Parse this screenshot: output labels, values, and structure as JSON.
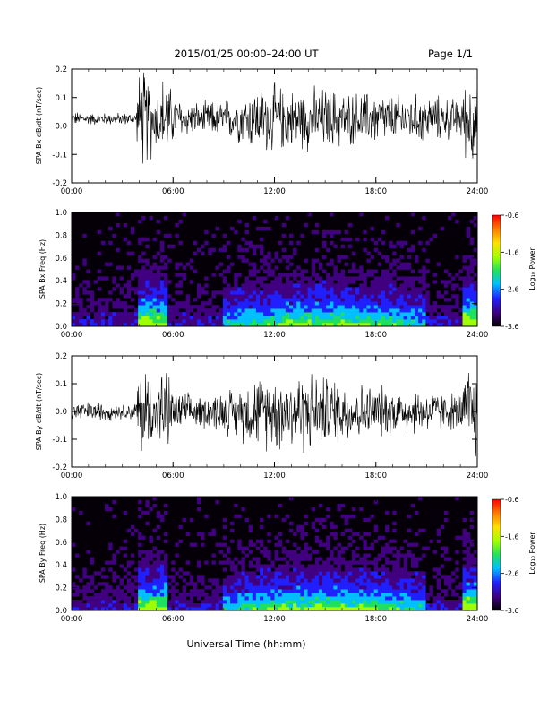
{
  "header": {
    "title": "2015/01/25  00:00–24:00 UT",
    "page": "Page 1/1"
  },
  "footer": {
    "xlabel": "Universal Time (hh:mm)"
  },
  "colors": {
    "background": "#ffffff",
    "trace": "#000000",
    "spectrogram_background": "#050008",
    "colormap": [
      "#050008",
      "#400080",
      "#2020ff",
      "#00c0ff",
      "#20e060",
      "#a0ff00",
      "#ffe000",
      "#ff8000",
      "#ff0000"
    ]
  },
  "chart_data": [
    {
      "type": "line",
      "ylabel": "SPA Bx dB/dt (nT/sec)",
      "xlim": [
        0,
        24
      ],
      "ylim": [
        -0.2,
        0.2
      ],
      "x_ticks": [
        "00:00",
        "06:00",
        "12:00",
        "18:00",
        "24:00"
      ],
      "y_ticks": [
        "0.2",
        "0.1",
        "0.0",
        "-0.1",
        "-0.2"
      ],
      "y_tick_values": [
        0.2,
        0.1,
        0.0,
        -0.1,
        -0.2
      ],
      "series": [
        {
          "x": [
            0,
            1,
            2,
            3,
            3.8,
            4.0,
            4.5,
            5.0,
            5.5,
            6,
            7,
            8,
            9,
            10,
            11,
            12,
            13,
            14,
            15,
            16,
            17,
            18,
            19,
            20,
            21,
            22,
            23,
            23.5,
            24
          ],
          "amplitude": [
            0.03,
            0.025,
            0.025,
            0.025,
            0.025,
            0.2,
            0.2,
            0.12,
            0.2,
            0.1,
            0.07,
            0.07,
            0.08,
            0.1,
            0.14,
            0.14,
            0.12,
            0.13,
            0.13,
            0.12,
            0.11,
            0.11,
            0.1,
            0.1,
            0.1,
            0.09,
            0.08,
            0.2,
            0.2
          ]
        }
      ]
    },
    {
      "type": "heatmap",
      "ylabel": "SPA Bx Freq (Hz)",
      "xlim": [
        0,
        24
      ],
      "ylim": [
        0,
        1.0
      ],
      "x_ticks": [
        "00:00",
        "06:00",
        "12:00",
        "18:00",
        "24:00"
      ],
      "y_ticks": [
        "1.0",
        "0.8",
        "0.6",
        "0.4",
        "0.2",
        "0.0"
      ],
      "y_tick_values": [
        1.0,
        0.8,
        0.6,
        0.4,
        0.2,
        0.0
      ],
      "colorbar": {
        "label": "Log₁₀ Power",
        "ticks": [
          "-0.6",
          "-1.6",
          "-2.6",
          "-3.6"
        ],
        "tick_values": [
          -0.6,
          -1.6,
          -2.6,
          -3.6
        ],
        "range": [
          -3.6,
          -0.6
        ]
      }
    },
    {
      "type": "line",
      "ylabel": "SPA By dB/dt (nT/sec)",
      "xlim": [
        0,
        24
      ],
      "ylim": [
        -0.2,
        0.2
      ],
      "x_ticks": [
        "00:00",
        "06:00",
        "12:00",
        "18:00",
        "24:00"
      ],
      "y_ticks": [
        "0.2",
        "0.1",
        "0.0",
        "-0.1",
        "-0.2"
      ],
      "y_tick_values": [
        0.2,
        0.1,
        0.0,
        -0.1,
        -0.2
      ],
      "series": [
        {
          "x": [
            0,
            1,
            2,
            3,
            3.8,
            4.0,
            4.5,
            5.0,
            5.5,
            6,
            7,
            8,
            9,
            10,
            11,
            12,
            13,
            14,
            15,
            16,
            17,
            18,
            19,
            20,
            21,
            22,
            23,
            23.5,
            24
          ],
          "amplitude": [
            0.05,
            0.04,
            0.04,
            0.03,
            0.04,
            0.2,
            0.2,
            0.1,
            0.2,
            0.1,
            0.07,
            0.07,
            0.09,
            0.12,
            0.15,
            0.16,
            0.17,
            0.17,
            0.15,
            0.14,
            0.12,
            0.11,
            0.1,
            0.1,
            0.09,
            0.08,
            0.08,
            0.2,
            0.2
          ]
        }
      ]
    },
    {
      "type": "heatmap",
      "ylabel": "SPA By Freq (Hz)",
      "xlim": [
        0,
        24
      ],
      "ylim": [
        0,
        1.0
      ],
      "x_ticks": [
        "00:00",
        "06:00",
        "12:00",
        "18:00",
        "24:00"
      ],
      "y_ticks": [
        "1.0",
        "0.8",
        "0.6",
        "0.4",
        "0.2",
        "0.0"
      ],
      "y_tick_values": [
        1.0,
        0.8,
        0.6,
        0.4,
        0.2,
        0.0
      ],
      "colorbar": {
        "label": "Log₁₀ Power",
        "ticks": [
          "-0.6",
          "-1.6",
          "-2.6",
          "-3.6"
        ],
        "tick_values": [
          -0.6,
          -1.6,
          -2.6,
          -3.6
        ],
        "range": [
          -3.6,
          -0.6
        ]
      }
    }
  ]
}
